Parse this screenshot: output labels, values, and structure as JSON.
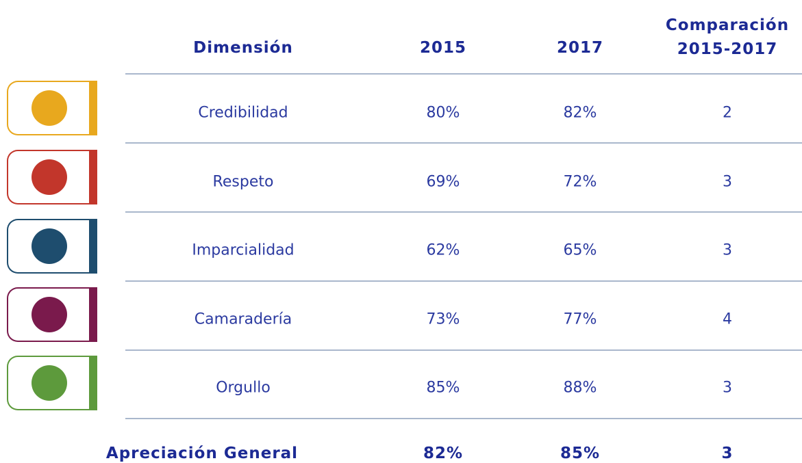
{
  "table": {
    "header": [
      "Dimensión",
      "2015",
      "2017",
      [
        "Comparación",
        "2015-2017"
      ]
    ],
    "rows": [
      [
        "Credibilidad",
        "80%",
        "82%",
        "2"
      ],
      [
        "Respeto",
        "69%",
        "72%",
        "3"
      ],
      [
        "Imparcialidad",
        "62%",
        "65%",
        "3"
      ],
      [
        "Camaradería",
        "73%",
        "77%",
        "4"
      ],
      [
        "Orgullo",
        "85%",
        "88%",
        "3"
      ]
    ],
    "footer": [
      "Apreciación General",
      "82%",
      "85%",
      "3"
    ]
  }
}
